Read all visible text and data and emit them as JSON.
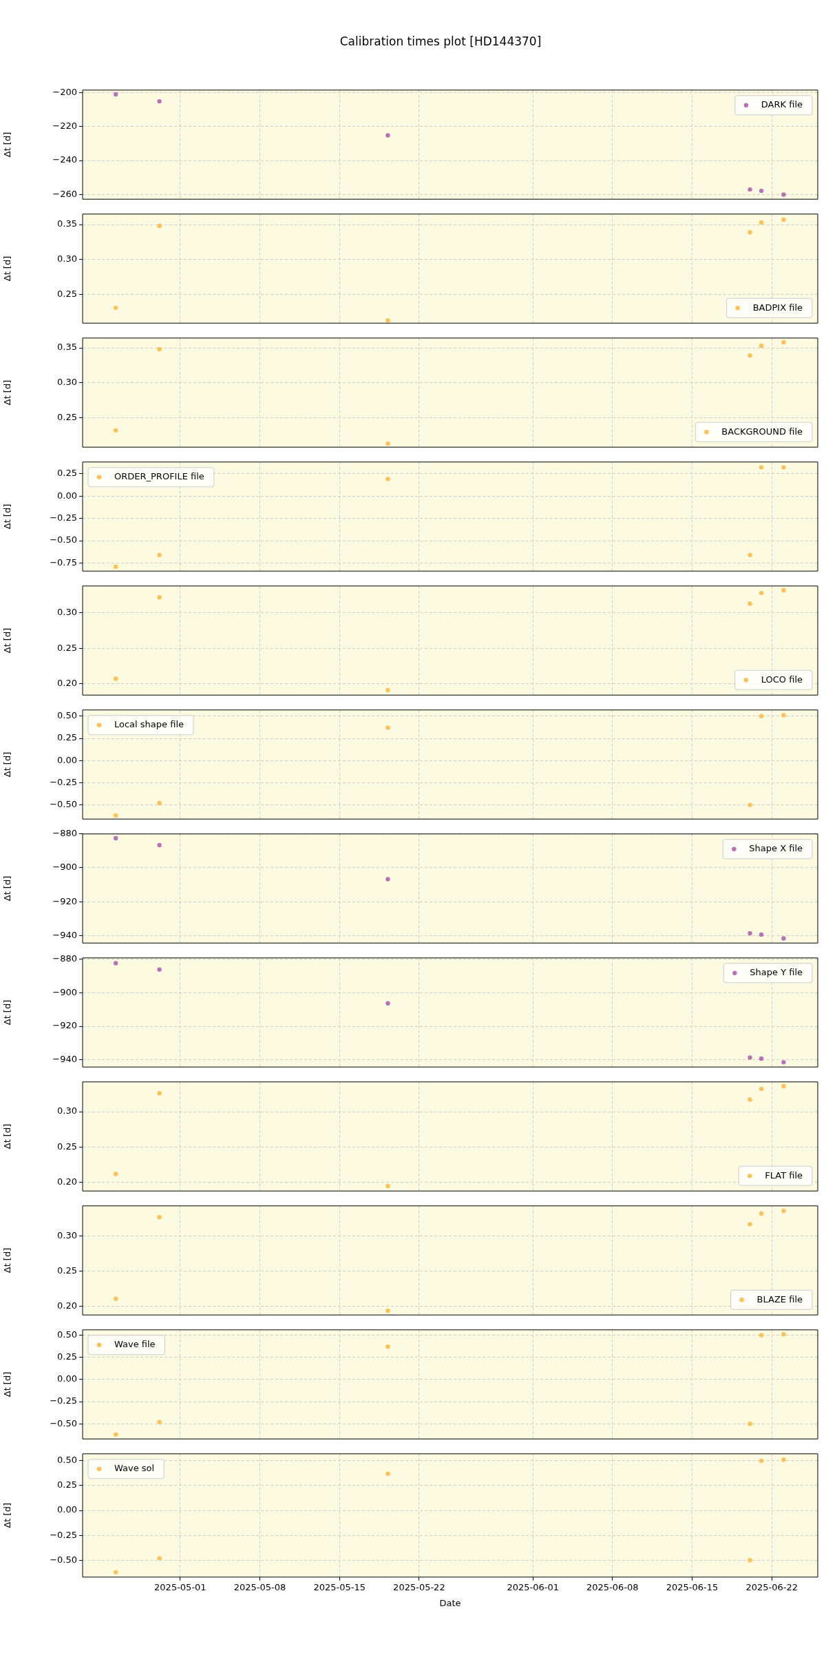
{
  "chart_data": [
    {
      "type": "scatter",
      "title": "Calibration times plot [HD144370]",
      "ylabel": "Δt [d]",
      "x": [
        "2025-04-25T08:00",
        "2025-04-29T04:00",
        "2025-05-19T06:00",
        "2025-06-20T02:00",
        "2025-06-21T02:00",
        "2025-06-23T01:00"
      ],
      "series": [
        {
          "name": "DARK file",
          "color": "#b873b8",
          "values": [
            -201.1,
            -205.2,
            -225.2,
            -257,
            -257.8,
            -260
          ]
        }
      ],
      "xlim": [
        "2025-04-22T10:00",
        "2025-06-26T01:00"
      ],
      "xticks": [
        "2025-05-01",
        "2025-05-08",
        "2025-05-15",
        "2025-05-22",
        "2025-06-01",
        "2025-06-08",
        "2025-06-15",
        "2025-06-22"
      ],
      "ylim": [
        -262.7,
        -198.6
      ],
      "yticks": [
        {
          "value": -200,
          "label": "−200"
        },
        {
          "value": -220,
          "label": "−220"
        },
        {
          "value": -240,
          "label": "−240"
        },
        {
          "value": -260,
          "label": "−260"
        }
      ],
      "grid": true,
      "legend": "top right",
      "marker": "circle",
      "tick_labels": "y"
    },
    {
      "type": "scatter",
      "ylabel": "Δt [d]",
      "x": [
        "2025-04-25T08:00",
        "2025-04-29T04:00",
        "2025-05-19T06:00",
        "2025-06-20T02:00",
        "2025-06-21T02:00",
        "2025-06-23T01:00"
      ],
      "series": [
        {
          "name": "BADPIX file",
          "color": "#fdc155",
          "values": [
            0.231,
            0.348,
            0.213,
            0.339,
            0.353,
            0.357
          ]
        }
      ],
      "xlim": [
        "2025-04-22T10:00",
        "2025-06-26T01:00"
      ],
      "xticks": [
        "2025-05-01",
        "2025-05-08",
        "2025-05-15",
        "2025-05-22",
        "2025-06-01",
        "2025-06-08",
        "2025-06-15",
        "2025-06-22"
      ],
      "ylim": [
        0.209,
        0.365
      ],
      "yticks": [
        {
          "value": 0.25,
          "label": "0.25"
        },
        {
          "value": 0.3,
          "label": "0.30"
        },
        {
          "value": 0.35,
          "label": "0.35"
        }
      ],
      "grid": true,
      "legend": "bottom right",
      "marker": "circle",
      "tick_labels": "y"
    },
    {
      "type": "scatter",
      "ylabel": "Δt [d]",
      "x": [
        "2025-04-25T08:00",
        "2025-04-29T04:00",
        "2025-05-19T06:00",
        "2025-06-20T02:00",
        "2025-06-21T02:00",
        "2025-06-23T01:00"
      ],
      "series": [
        {
          "name": "BACKGROUND file",
          "color": "#fdc155",
          "values": [
            0.232,
            0.348,
            0.213,
            0.339,
            0.353,
            0.358
          ]
        }
      ],
      "xlim": [
        "2025-04-22T10:00",
        "2025-06-26T01:00"
      ],
      "xticks": [
        "2025-05-01",
        "2025-05-08",
        "2025-05-15",
        "2025-05-22",
        "2025-06-01",
        "2025-06-08",
        "2025-06-15",
        "2025-06-22"
      ],
      "ylim": [
        0.208,
        0.364
      ],
      "yticks": [
        {
          "value": 0.25,
          "label": "0.25"
        },
        {
          "value": 0.3,
          "label": "0.30"
        },
        {
          "value": 0.35,
          "label": "0.35"
        }
      ],
      "grid": true,
      "legend": "bottom right",
      "marker": "circle",
      "tick_labels": "y"
    },
    {
      "type": "scatter",
      "ylabel": "Δt [d]",
      "x": [
        "2025-04-25T08:00",
        "2025-04-29T04:00",
        "2025-05-19T06:00",
        "2025-06-20T02:00",
        "2025-06-21T02:00",
        "2025-06-23T01:00"
      ],
      "series": [
        {
          "name": "ORDER_PROFILE file",
          "color": "#fdc155",
          "values": [
            -0.79,
            -0.66,
            0.19,
            -0.66,
            0.32,
            0.32
          ]
        }
      ],
      "xlim": [
        "2025-04-22T10:00",
        "2025-06-26T01:00"
      ],
      "xticks": [
        "2025-05-01",
        "2025-05-08",
        "2025-05-15",
        "2025-05-22",
        "2025-06-01",
        "2025-06-08",
        "2025-06-15",
        "2025-06-22"
      ],
      "ylim": [
        -0.84,
        0.38
      ],
      "yticks": [
        {
          "value": -0.75,
          "label": "−0.75"
        },
        {
          "value": -0.5,
          "label": "−0.50"
        },
        {
          "value": -0.25,
          "label": "−0.25"
        },
        {
          "value": 0,
          "label": "0.00"
        },
        {
          "value": 0.25,
          "label": "0.25"
        }
      ],
      "grid": true,
      "legend": "top left",
      "marker": "circle",
      "tick_labels": "y"
    },
    {
      "type": "scatter",
      "ylabel": "Δt [d]",
      "x": [
        "2025-04-25T08:00",
        "2025-04-29T04:00",
        "2025-05-19T06:00",
        "2025-06-20T02:00",
        "2025-06-21T02:00",
        "2025-06-23T01:00"
      ],
      "series": [
        {
          "name": "LOCO file",
          "color": "#fdc155",
          "values": [
            0.207,
            0.322,
            0.191,
            0.313,
            0.328,
            0.332
          ]
        }
      ],
      "xlim": [
        "2025-04-22T10:00",
        "2025-06-26T01:00"
      ],
      "xticks": [
        "2025-05-01",
        "2025-05-08",
        "2025-05-15",
        "2025-05-22",
        "2025-06-01",
        "2025-06-08",
        "2025-06-15",
        "2025-06-22"
      ],
      "ylim": [
        0.184,
        0.338
      ],
      "yticks": [
        {
          "value": 0.2,
          "label": "0.20"
        },
        {
          "value": 0.25,
          "label": "0.25"
        },
        {
          "value": 0.3,
          "label": "0.30"
        }
      ],
      "grid": true,
      "legend": "bottom right",
      "marker": "circle",
      "tick_labels": "y"
    },
    {
      "type": "scatter",
      "ylabel": "Δt [d]",
      "x": [
        "2025-04-25T08:00",
        "2025-04-29T04:00",
        "2025-05-19T06:00",
        "2025-06-20T02:00",
        "2025-06-21T02:00",
        "2025-06-23T01:00"
      ],
      "series": [
        {
          "name": "Local shape file",
          "color": "#fdc155",
          "values": [
            -0.62,
            -0.48,
            0.37,
            -0.5,
            0.5,
            0.51
          ]
        }
      ],
      "xlim": [
        "2025-04-22T10:00",
        "2025-06-26T01:00"
      ],
      "xticks": [
        "2025-05-01",
        "2025-05-08",
        "2025-05-15",
        "2025-05-22",
        "2025-06-01",
        "2025-06-08",
        "2025-06-15",
        "2025-06-22"
      ],
      "ylim": [
        -0.66,
        0.57
      ],
      "yticks": [
        {
          "value": -0.5,
          "label": "−0.50"
        },
        {
          "value": -0.25,
          "label": "−0.25"
        },
        {
          "value": 0,
          "label": "0.00"
        },
        {
          "value": 0.25,
          "label": "0.25"
        },
        {
          "value": 0.5,
          "label": "0.50"
        }
      ],
      "grid": true,
      "legend": "top left",
      "marker": "circle",
      "tick_labels": "y"
    },
    {
      "type": "scatter",
      "ylabel": "Δt [d]",
      "x": [
        "2025-04-25T08:00",
        "2025-04-29T04:00",
        "2025-05-19T06:00",
        "2025-06-20T02:00",
        "2025-06-21T02:00",
        "2025-06-23T01:00"
      ],
      "series": [
        {
          "name": "Shape X file",
          "color": "#b873b8",
          "values": [
            -882.5,
            -886.6,
            -906.7,
            -938.6,
            -939.4,
            -941.7
          ]
        }
      ],
      "xlim": [
        "2025-04-22T10:00",
        "2025-06-26T01:00"
      ],
      "xticks": [
        "2025-05-01",
        "2025-05-08",
        "2025-05-15",
        "2025-05-22",
        "2025-06-01",
        "2025-06-08",
        "2025-06-15",
        "2025-06-22"
      ],
      "ylim": [
        -944.4,
        -880
      ],
      "yticks": [
        {
          "value": -940,
          "label": "−940"
        },
        {
          "value": -920,
          "label": "−920"
        },
        {
          "value": -900,
          "label": "−900"
        },
        {
          "value": -880,
          "label": "−880"
        }
      ],
      "grid": true,
      "legend": "top right",
      "marker": "circle",
      "tick_labels": "y"
    },
    {
      "type": "scatter",
      "ylabel": "Δt [d]",
      "x": [
        "2025-04-25T08:00",
        "2025-04-29T04:00",
        "2025-05-19T06:00",
        "2025-06-20T02:00",
        "2025-06-21T02:00",
        "2025-06-23T01:00"
      ],
      "series": [
        {
          "name": "Shape Y file",
          "color": "#b873b8",
          "values": [
            -882.5,
            -886.3,
            -906.4,
            -938.6,
            -939.2,
            -941.4
          ]
        }
      ],
      "xlim": [
        "2025-04-22T10:00",
        "2025-06-26T01:00"
      ],
      "xticks": [
        "2025-05-01",
        "2025-05-08",
        "2025-05-15",
        "2025-05-22",
        "2025-06-01",
        "2025-06-08",
        "2025-06-15",
        "2025-06-22"
      ],
      "ylim": [
        -944.2,
        -879.4
      ],
      "yticks": [
        {
          "value": -940,
          "label": "−940"
        },
        {
          "value": -920,
          "label": "−920"
        },
        {
          "value": -900,
          "label": "−900"
        },
        {
          "value": -880,
          "label": "−880"
        }
      ],
      "grid": true,
      "legend": "top right",
      "marker": "circle",
      "tick_labels": "y"
    },
    {
      "type": "scatter",
      "ylabel": "Δt [d]",
      "x": [
        "2025-04-25T08:00",
        "2025-04-29T04:00",
        "2025-05-19T06:00",
        "2025-06-20T02:00",
        "2025-06-21T02:00",
        "2025-06-23T01:00"
      ],
      "series": [
        {
          "name": "FLAT file",
          "color": "#fdc155",
          "values": [
            0.212,
            0.326,
            0.195,
            0.317,
            0.332,
            0.336
          ]
        }
      ],
      "xlim": [
        "2025-04-22T10:00",
        "2025-06-26T01:00"
      ],
      "xticks": [
        "2025-05-01",
        "2025-05-08",
        "2025-05-15",
        "2025-05-22",
        "2025-06-01",
        "2025-06-08",
        "2025-06-15",
        "2025-06-22"
      ],
      "ylim": [
        0.188,
        0.342
      ],
      "yticks": [
        {
          "value": 0.2,
          "label": "0.20"
        },
        {
          "value": 0.25,
          "label": "0.25"
        },
        {
          "value": 0.3,
          "label": "0.30"
        }
      ],
      "grid": true,
      "legend": "bottom right",
      "marker": "circle",
      "tick_labels": "y"
    },
    {
      "type": "scatter",
      "ylabel": "Δt [d]",
      "x": [
        "2025-04-25T08:00",
        "2025-04-29T04:00",
        "2025-05-19T06:00",
        "2025-06-20T02:00",
        "2025-06-21T02:00",
        "2025-06-23T01:00"
      ],
      "series": [
        {
          "name": "BLAZE file",
          "color": "#fdc155",
          "values": [
            0.211,
            0.327,
            0.194,
            0.317,
            0.332,
            0.336
          ]
        }
      ],
      "xlim": [
        "2025-04-22T10:00",
        "2025-06-26T01:00"
      ],
      "xticks": [
        "2025-05-01",
        "2025-05-08",
        "2025-05-15",
        "2025-05-22",
        "2025-06-01",
        "2025-06-08",
        "2025-06-15",
        "2025-06-22"
      ],
      "ylim": [
        0.188,
        0.343
      ],
      "yticks": [
        {
          "value": 0.2,
          "label": "0.20"
        },
        {
          "value": 0.25,
          "label": "0.25"
        },
        {
          "value": 0.3,
          "label": "0.30"
        }
      ],
      "grid": true,
      "legend": "bottom right",
      "marker": "circle",
      "tick_labels": "y"
    },
    {
      "type": "scatter",
      "ylabel": "Δt [d]",
      "x": [
        "2025-04-25T08:00",
        "2025-04-29T04:00",
        "2025-05-19T06:00",
        "2025-06-20T02:00",
        "2025-06-21T02:00",
        "2025-06-23T01:00"
      ],
      "series": [
        {
          "name": "Wave file",
          "color": "#fdc155",
          "values": [
            -0.62,
            -0.48,
            0.37,
            -0.5,
            0.5,
            0.51
          ]
        }
      ],
      "xlim": [
        "2025-04-22T10:00",
        "2025-06-26T01:00"
      ],
      "xticks": [
        "2025-05-01",
        "2025-05-08",
        "2025-05-15",
        "2025-05-22",
        "2025-06-01",
        "2025-06-08",
        "2025-06-15",
        "2025-06-22"
      ],
      "ylim": [
        -0.67,
        0.56
      ],
      "yticks": [
        {
          "value": -0.5,
          "label": "−0.50"
        },
        {
          "value": -0.25,
          "label": "−0.25"
        },
        {
          "value": 0,
          "label": "0.00"
        },
        {
          "value": 0.25,
          "label": "0.25"
        },
        {
          "value": 0.5,
          "label": "0.50"
        }
      ],
      "grid": true,
      "legend": "top left",
      "marker": "circle",
      "tick_labels": "y"
    },
    {
      "type": "scatter",
      "ylabel": "Δt [d]",
      "xlabel": "Date",
      "x": [
        "2025-04-25T08:00",
        "2025-04-29T04:00",
        "2025-05-19T06:00",
        "2025-06-20T02:00",
        "2025-06-21T02:00",
        "2025-06-23T01:00"
      ],
      "series": [
        {
          "name": "Wave sol",
          "color": "#fdc155",
          "values": [
            -0.62,
            -0.48,
            0.37,
            -0.5,
            0.5,
            0.51
          ]
        }
      ],
      "xlim": [
        "2025-04-22T10:00",
        "2025-06-26T01:00"
      ],
      "xticks": [
        "2025-05-01",
        "2025-05-08",
        "2025-05-15",
        "2025-05-22",
        "2025-06-01",
        "2025-06-08",
        "2025-06-15",
        "2025-06-22"
      ],
      "ylim": [
        -0.67,
        0.57
      ],
      "yticks": [
        {
          "value": -0.5,
          "label": "−0.50"
        },
        {
          "value": -0.25,
          "label": "−0.25"
        },
        {
          "value": 0,
          "label": "0.00"
        },
        {
          "value": 0.25,
          "label": "0.25"
        },
        {
          "value": 0.5,
          "label": "0.50"
        }
      ],
      "grid": true,
      "legend": "top left",
      "marker": "circle"
    }
  ]
}
